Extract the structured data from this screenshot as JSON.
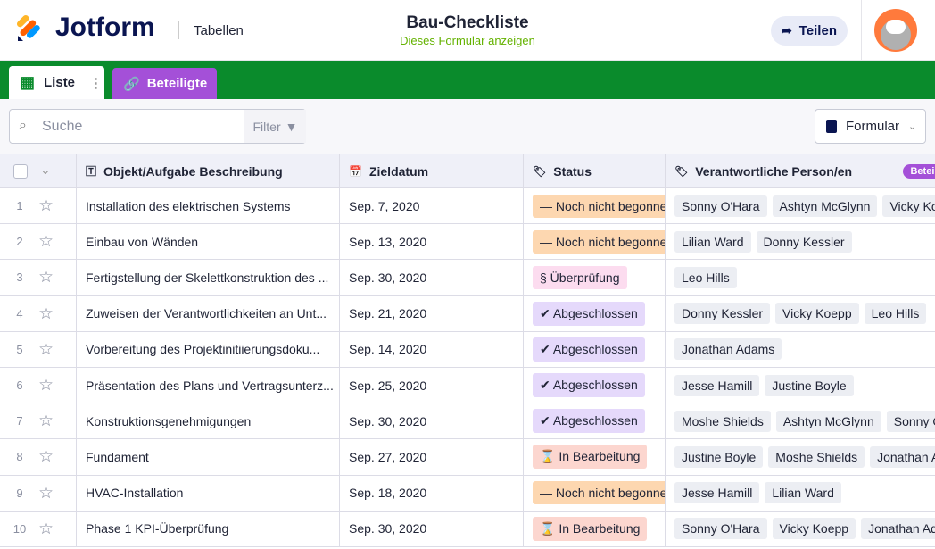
{
  "header": {
    "logo": "Jotform",
    "section": "Tabellen",
    "title": "Bau-Checkliste",
    "subtitle": "Dieses Formular anzeigen",
    "share": "Teilen"
  },
  "tabs": [
    "Liste",
    "Beteiligte"
  ],
  "toolbar": {
    "search": "Suche",
    "filter": "Filter",
    "form": "Formular"
  },
  "table": {
    "columns": [
      "Objekt/Aufgabe Beschreibung",
      "Zieldatum",
      "Status",
      "Verantwortliche Person/en"
    ],
    "column_badge": "Beteiligte",
    "rows": [
      {
        "num": "1",
        "task": "Installation des elektrischen Systems",
        "date": "Sep. 7, 2020",
        "status": {
          "label": "— Noch nicht begonnen",
          "color": "#fdd7b0"
        },
        "people": [
          "Sonny O'Hara",
          "Ashtyn McGlynn",
          "Vicky Koepp"
        ]
      },
      {
        "num": "2",
        "task": "Einbau von Wänden",
        "date": "Sep. 13, 2020",
        "status": {
          "label": "— Noch nicht begonnen",
          "color": "#fdd7b0"
        },
        "people": [
          "Lilian Ward",
          "Donny Kessler"
        ]
      },
      {
        "num": "3",
        "task": "Fertigstellung der Skelettkonstruktion des ...",
        "date": "Sep. 30, 2020",
        "status": {
          "label": "§ Überprüfung",
          "color": "#fcdcef"
        },
        "people": [
          "Leo Hills"
        ]
      },
      {
        "num": "4",
        "task": "Zuweisen der Verantwortlichkeiten an Unt...",
        "date": "Sep. 21, 2020",
        "status": {
          "label": "✔ Abgeschlossen",
          "color": "#e5d9fb"
        },
        "people": [
          "Donny Kessler",
          "Vicky Koepp",
          "Leo Hills"
        ]
      },
      {
        "num": "5",
        "task": "Vorbereitung des Projektinitiierungsdoku...",
        "date": "Sep. 14, 2020",
        "status": {
          "label": "✔ Abgeschlossen",
          "color": "#e5d9fb"
        },
        "people": [
          "Jonathan Adams"
        ]
      },
      {
        "num": "6",
        "task": "Präsentation des Plans und Vertragsunterz...",
        "date": "Sep. 25, 2020",
        "status": {
          "label": "✔ Abgeschlossen",
          "color": "#e5d9fb"
        },
        "people": [
          "Jesse Hamill",
          "Justine Boyle"
        ]
      },
      {
        "num": "7",
        "task": "Konstruktionsgenehmigungen",
        "date": "Sep. 30, 2020",
        "status": {
          "label": "✔ Abgeschlossen",
          "color": "#e5d9fb"
        },
        "people": [
          "Moshe Shields",
          "Ashtyn McGlynn",
          "Sonny O'Hara"
        ]
      },
      {
        "num": "8",
        "task": "Fundament",
        "date": "Sep. 27, 2020",
        "status": {
          "label": "⌛ In Bearbeitung",
          "color": "#fcd6cf"
        },
        "people": [
          "Justine Boyle",
          "Moshe Shields",
          "Jonathan Adams"
        ]
      },
      {
        "num": "9",
        "task": "HVAC-Installation",
        "date": "Sep. 18, 2020",
        "status": {
          "label": "— Noch nicht begonnen",
          "color": "#fdd7b0"
        },
        "people": [
          "Jesse Hamill",
          "Lilian Ward"
        ]
      },
      {
        "num": "10",
        "task": "Phase 1 KPI-Überprüfung",
        "date": "Sep. 30, 2020",
        "status": {
          "label": "⌛ In Bearbeitung",
          "color": "#fcd6cf"
        },
        "people": [
          "Sonny O'Hara",
          "Vicky Koepp",
          "Jonathan Adams"
        ]
      }
    ]
  }
}
